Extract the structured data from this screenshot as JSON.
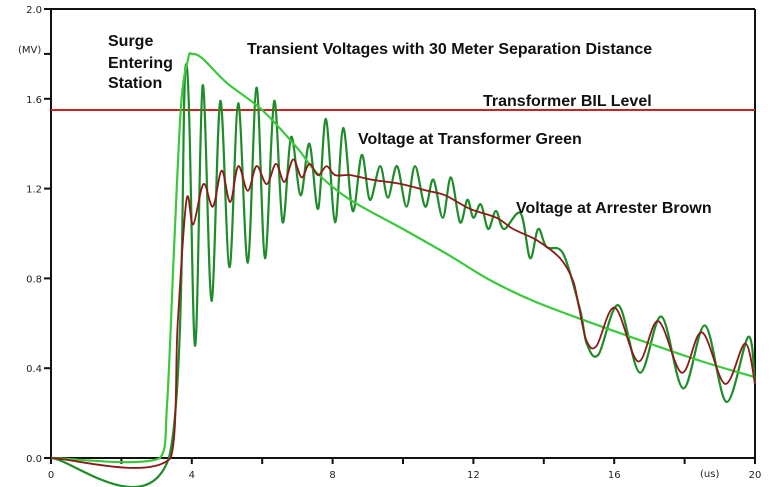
{
  "chart_data": {
    "type": "line",
    "title": "Transient Voltages with 30 Meter Separation Distance",
    "xlabel": "(us)",
    "ylabel": "(MV)",
    "xlim": [
      0,
      20
    ],
    "ylim": [
      0,
      2.0
    ],
    "x_ticks": [
      0,
      2,
      4,
      6,
      8,
      10,
      12,
      14,
      16,
      18,
      20
    ],
    "x_tick_labels": [
      "0",
      "4",
      "8",
      "12",
      "16",
      "20"
    ],
    "x_tick_label_values": [
      0,
      4,
      8,
      12,
      16,
      20
    ],
    "y_ticks": [
      0,
      0.2,
      0.4,
      0.6,
      0.8,
      1.0,
      1.2,
      1.4,
      1.6,
      1.8,
      2.0
    ],
    "y_tick_labels": [
      "0.0",
      "0.4",
      "0.8",
      "1.2",
      "1.6",
      "2.0"
    ],
    "y_tick_label_values": [
      0,
      0.4,
      0.8,
      1.2,
      1.6,
      2.0
    ],
    "grid": false,
    "annotations": {
      "surge": [
        "Surge",
        "Entering",
        "Station"
      ],
      "bil": "Transformer BIL Level",
      "transformer": "Voltage at Transformer Green",
      "arrester": "Voltage at Arrester Brown"
    },
    "bil_level": 1.55,
    "colors": {
      "surge": "#3cc83c",
      "transformer": "#1e8c28",
      "arrester": "#8b1a1a",
      "bil": "#cc2222",
      "axis": "#111111"
    },
    "series": [
      {
        "name": "Surge Entering Station",
        "points": [
          [
            0,
            0
          ],
          [
            3.1,
            0
          ],
          [
            3.3,
            0.25
          ],
          [
            3.5,
            0.95
          ],
          [
            3.7,
            1.58
          ],
          [
            3.9,
            1.78
          ],
          [
            4.0,
            1.8
          ],
          [
            4.3,
            1.78
          ],
          [
            5,
            1.67
          ],
          [
            6,
            1.55
          ],
          [
            7,
            1.38
          ],
          [
            7.55,
            1.27
          ],
          [
            8.5,
            1.15
          ],
          [
            10,
            1.02
          ],
          [
            11.34,
            0.9
          ],
          [
            12.5,
            0.79
          ],
          [
            13.7,
            0.7
          ],
          [
            15.03,
            0.62
          ],
          [
            17,
            0.51
          ],
          [
            18.5,
            0.43
          ],
          [
            20,
            0.36
          ]
        ]
      },
      {
        "name": "Voltage at Transformer",
        "points": [
          [
            0,
            0
          ],
          [
            3.35,
            0
          ],
          [
            3.83,
            1.75
          ],
          [
            4.09,
            0.5
          ],
          [
            4.31,
            1.66
          ],
          [
            4.56,
            0.7
          ],
          [
            4.81,
            1.59
          ],
          [
            5.07,
            0.85
          ],
          [
            5.32,
            1.58
          ],
          [
            5.59,
            0.87
          ],
          [
            5.84,
            1.65
          ],
          [
            6.08,
            0.89
          ],
          [
            6.34,
            1.59
          ],
          [
            6.58,
            1.05
          ],
          [
            6.82,
            1.43
          ],
          [
            7.09,
            1.17
          ],
          [
            7.34,
            1.4
          ],
          [
            7.59,
            1.11
          ],
          [
            7.81,
            1.51
          ],
          [
            8.07,
            1.05
          ],
          [
            8.3,
            1.47
          ],
          [
            8.57,
            1.1
          ],
          [
            8.83,
            1.35
          ],
          [
            9.06,
            1.15
          ],
          [
            9.35,
            1.3
          ],
          [
            9.57,
            1.16
          ],
          [
            9.83,
            1.3
          ],
          [
            10.1,
            1.12
          ],
          [
            10.34,
            1.3
          ],
          [
            10.63,
            1.12
          ],
          [
            10.86,
            1.24
          ],
          [
            11.13,
            1.07
          ],
          [
            11.36,
            1.25
          ],
          [
            11.62,
            1.05
          ],
          [
            11.83,
            1.15
          ],
          [
            12.0,
            1.07
          ],
          [
            12.21,
            1.13
          ],
          [
            12.42,
            1.02
          ],
          [
            12.64,
            1.1
          ],
          [
            12.87,
            1.02
          ],
          [
            13.34,
            1.09
          ],
          [
            13.61,
            0.89
          ],
          [
            13.84,
            1.02
          ],
          [
            14.08,
            0.94
          ],
          [
            14.55,
            0.91
          ],
          [
            15.03,
            0.66
          ],
          [
            15.22,
            0.51
          ],
          [
            15.55,
            0.46
          ],
          [
            16.12,
            0.68
          ],
          [
            16.73,
            0.38
          ],
          [
            17.34,
            0.63
          ],
          [
            17.96,
            0.31
          ],
          [
            18.58,
            0.59
          ],
          [
            19.19,
            0.25
          ],
          [
            19.81,
            0.54
          ],
          [
            20,
            0.33
          ]
        ]
      },
      {
        "name": "Voltage at Arrester",
        "points": [
          [
            0,
            0
          ],
          [
            3.4,
            0
          ],
          [
            3.6,
            0.6
          ],
          [
            3.85,
            1.15
          ],
          [
            4.04,
            1.04
          ],
          [
            4.33,
            1.22
          ],
          [
            4.6,
            1.12
          ],
          [
            4.85,
            1.28
          ],
          [
            5.09,
            1.14
          ],
          [
            5.32,
            1.3
          ],
          [
            5.59,
            1.19
          ],
          [
            5.84,
            1.3
          ],
          [
            6.13,
            1.22
          ],
          [
            6.39,
            1.31
          ],
          [
            6.63,
            1.23
          ],
          [
            6.88,
            1.33
          ],
          [
            7.12,
            1.25
          ],
          [
            7.34,
            1.31
          ],
          [
            7.59,
            1.26
          ],
          [
            7.83,
            1.3
          ],
          [
            8.07,
            1.26
          ],
          [
            8.5,
            1.26
          ],
          [
            9.1,
            1.24
          ],
          [
            9.96,
            1.22
          ],
          [
            10.7,
            1.19
          ],
          [
            11.2,
            1.17
          ],
          [
            11.9,
            1.11
          ],
          [
            12.66,
            1.07
          ],
          [
            13.13,
            1.02
          ],
          [
            13.8,
            0.97
          ],
          [
            14.46,
            0.89
          ],
          [
            14.83,
            0.79
          ],
          [
            15.0,
            0.67
          ],
          [
            15.22,
            0.52
          ],
          [
            15.5,
            0.5
          ],
          [
            16.02,
            0.67
          ],
          [
            16.68,
            0.43
          ],
          [
            17.25,
            0.61
          ],
          [
            17.92,
            0.38
          ],
          [
            18.49,
            0.56
          ],
          [
            19.15,
            0.33
          ],
          [
            19.72,
            0.51
          ],
          [
            20,
            0.33
          ]
        ]
      }
    ]
  }
}
